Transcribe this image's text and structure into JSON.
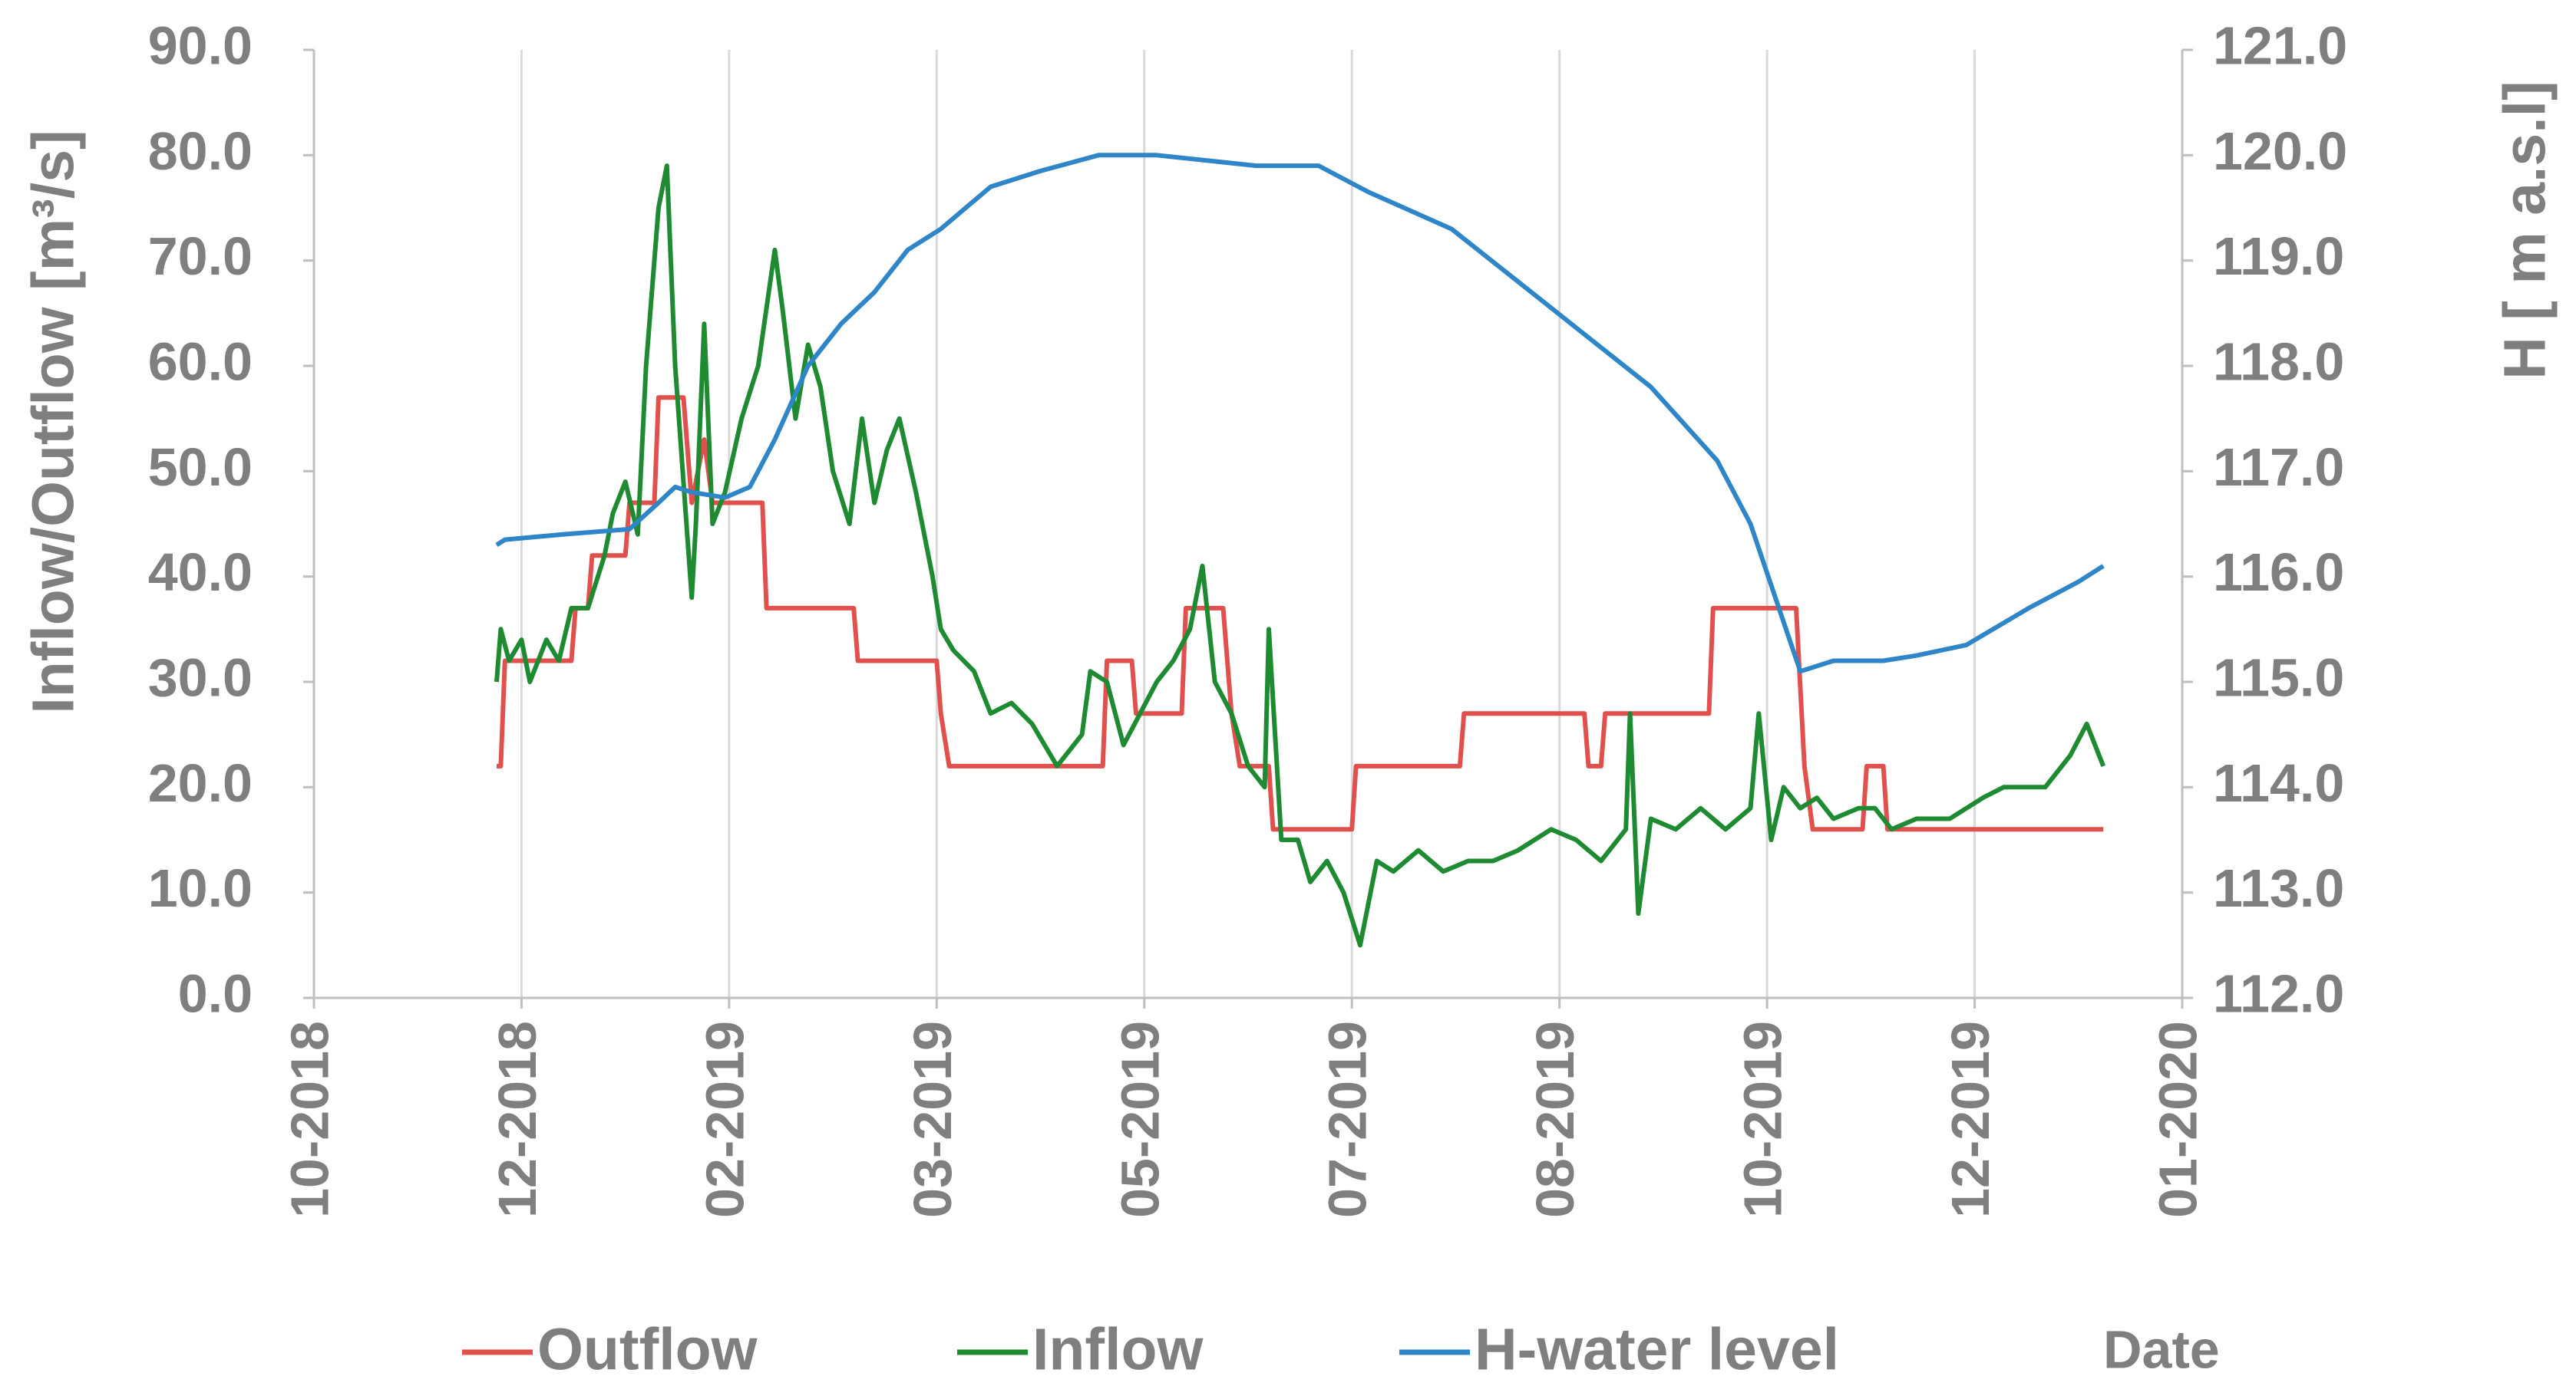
{
  "chart_data": {
    "type": "line",
    "y_label": "Inflow/Outflow [m³/s]",
    "y2_label": "H [ m a.s.l]",
    "x_label": "Date",
    "xlim": [
      43404,
      43854
    ],
    "xticks": [
      {
        "value": 43404,
        "label": "10-2018"
      },
      {
        "value": 43454,
        "label": "12-2018"
      },
      {
        "value": 43504,
        "label": "02-2019"
      },
      {
        "value": 43554,
        "label": "03-2019"
      },
      {
        "value": 43604,
        "label": "05-2019"
      },
      {
        "value": 43654,
        "label": "07-2019"
      },
      {
        "value": 43704,
        "label": "08-2019"
      },
      {
        "value": 43754,
        "label": "10-2019"
      },
      {
        "value": 43804,
        "label": "12-2019"
      },
      {
        "value": 43854,
        "label": "01-2020"
      }
    ],
    "ylim": [
      0,
      90
    ],
    "yticks": [
      {
        "value": 0,
        "label": "0.0"
      },
      {
        "value": 10,
        "label": "10.0"
      },
      {
        "value": 20,
        "label": "20.0"
      },
      {
        "value": 30,
        "label": "30.0"
      },
      {
        "value": 40,
        "label": "40.0"
      },
      {
        "value": 50,
        "label": "50.0"
      },
      {
        "value": 60,
        "label": "60.0"
      },
      {
        "value": 70,
        "label": "70.0"
      },
      {
        "value": 80,
        "label": "80.0"
      },
      {
        "value": 90,
        "label": "90.0"
      }
    ],
    "y2lim": [
      112,
      121
    ],
    "y2ticks": [
      {
        "value": 112,
        "label": "112.0"
      },
      {
        "value": 113,
        "label": "113.0"
      },
      {
        "value": 114,
        "label": "114.0"
      },
      {
        "value": 115,
        "label": "115.0"
      },
      {
        "value": 116,
        "label": "116.0"
      },
      {
        "value": 117,
        "label": "117.0"
      },
      {
        "value": 118,
        "label": "118.0"
      },
      {
        "value": 119,
        "label": "119.0"
      },
      {
        "value": 120,
        "label": "120.0"
      },
      {
        "value": 121,
        "label": "121.0"
      }
    ],
    "grid": true,
    "series": [
      {
        "name": "Outflow",
        "color": "#e0504d",
        "x": [
          43448,
          43449,
          43450,
          43466,
          43467,
          43470,
          43471,
          43479,
          43480,
          43486,
          43487,
          43493,
          43495,
          43498,
          43500,
          43512,
          43513,
          43534,
          43535,
          43554,
          43555,
          43557,
          43594,
          43595,
          43601,
          43602,
          43613,
          43614,
          43623,
          43625,
          43627,
          43634,
          43635,
          43654,
          43655,
          43680,
          43681,
          43710,
          43711,
          43714,
          43715,
          43740,
          43741,
          43761,
          43763,
          43765,
          43777,
          43778,
          43782,
          43783,
          43835
        ],
        "values": [
          22,
          22,
          32,
          32,
          37,
          37,
          42,
          42,
          47,
          47,
          57,
          57,
          47,
          53,
          47,
          47,
          37,
          37,
          32,
          32,
          27,
          22,
          22,
          32,
          32,
          27,
          27,
          37,
          37,
          27,
          22,
          22,
          16,
          16,
          22,
          22,
          27,
          27,
          22,
          22,
          27,
          27,
          37,
          37,
          22,
          16,
          16,
          22,
          22,
          16,
          16
        ]
      },
      {
        "name": "Inflow",
        "color": "#1e8a32",
        "x": [
          43448,
          43449,
          43451,
          43454,
          43456,
          43460,
          43463,
          43466,
          43470,
          43474,
          43476,
          43479,
          43482,
          43484,
          43487,
          43489,
          43491,
          43495,
          43496,
          43498,
          43500,
          43503,
          43507,
          43511,
          43515,
          43517,
          43520,
          43523,
          43526,
          43529,
          43533,
          43536,
          43539,
          43542,
          43545,
          43549,
          43553,
          43555,
          43558,
          43563,
          43567,
          43572,
          43577,
          43583,
          43589,
          43591,
          43595,
          43599,
          43603,
          43607,
          43611,
          43615,
          43618,
          43621,
          43625,
          43629,
          43633,
          43634,
          43637,
          43641,
          43644,
          43648,
          43652,
          43656,
          43660,
          43664,
          43670,
          43676,
          43682,
          43688,
          43694,
          43702,
          43708,
          43714,
          43720,
          43721,
          43723,
          43726,
          43732,
          43738,
          43744,
          43750,
          43752,
          43755,
          43758,
          43762,
          43766,
          43770,
          43776,
          43780,
          43784,
          43790,
          43798,
          43806,
          43811,
          43815,
          43821,
          43827,
          43831,
          43835
        ],
        "values": [
          30,
          35,
          32,
          34,
          30,
          34,
          32,
          37,
          37,
          42,
          46,
          49,
          44,
          60,
          75,
          79,
          60,
          38,
          45,
          64,
          45,
          48,
          55,
          60,
          71,
          65,
          55,
          62,
          58,
          50,
          45,
          55,
          47,
          52,
          55,
          48,
          40,
          35,
          33,
          31,
          27,
          28,
          26,
          22,
          25,
          31,
          30,
          24,
          27,
          30,
          32,
          35,
          41,
          30,
          27,
          22,
          20,
          35,
          15,
          15,
          11,
          13,
          10,
          5,
          13,
          12,
          14,
          12,
          13,
          13,
          14,
          16,
          15,
          13,
          16,
          27,
          8,
          17,
          16,
          18,
          16,
          18,
          27,
          15,
          20,
          18,
          19,
          17,
          18,
          18,
          16,
          17,
          17,
          19,
          20,
          20,
          20,
          23,
          26,
          22
        ]
      },
      {
        "name": "H-water level",
        "color": "#2e86c8",
        "axis": "y2",
        "x": [
          43448,
          43450,
          43464,
          43480,
          43487,
          43491,
          43495,
          43503,
          43509,
          43515,
          43523,
          43531,
          43539,
          43547,
          43555,
          43567,
          43579,
          43593,
          43607,
          43631,
          43646,
          43658,
          43678,
          43694,
          43710,
          43726,
          43742,
          43750,
          43756,
          43762,
          43770,
          43782,
          43790,
          43802,
          43817,
          43829,
          43835
        ],
        "values": [
          116.3,
          116.35,
          116.4,
          116.45,
          116.7,
          116.85,
          116.8,
          116.75,
          116.85,
          117.3,
          118.0,
          118.4,
          118.7,
          119.1,
          119.3,
          119.7,
          119.85,
          120.0,
          120.0,
          119.9,
          119.9,
          119.65,
          119.3,
          118.8,
          118.3,
          117.8,
          117.1,
          116.5,
          115.8,
          115.1,
          115.2,
          115.2,
          115.25,
          115.35,
          115.7,
          115.95,
          116.1
        ]
      }
    ]
  }
}
